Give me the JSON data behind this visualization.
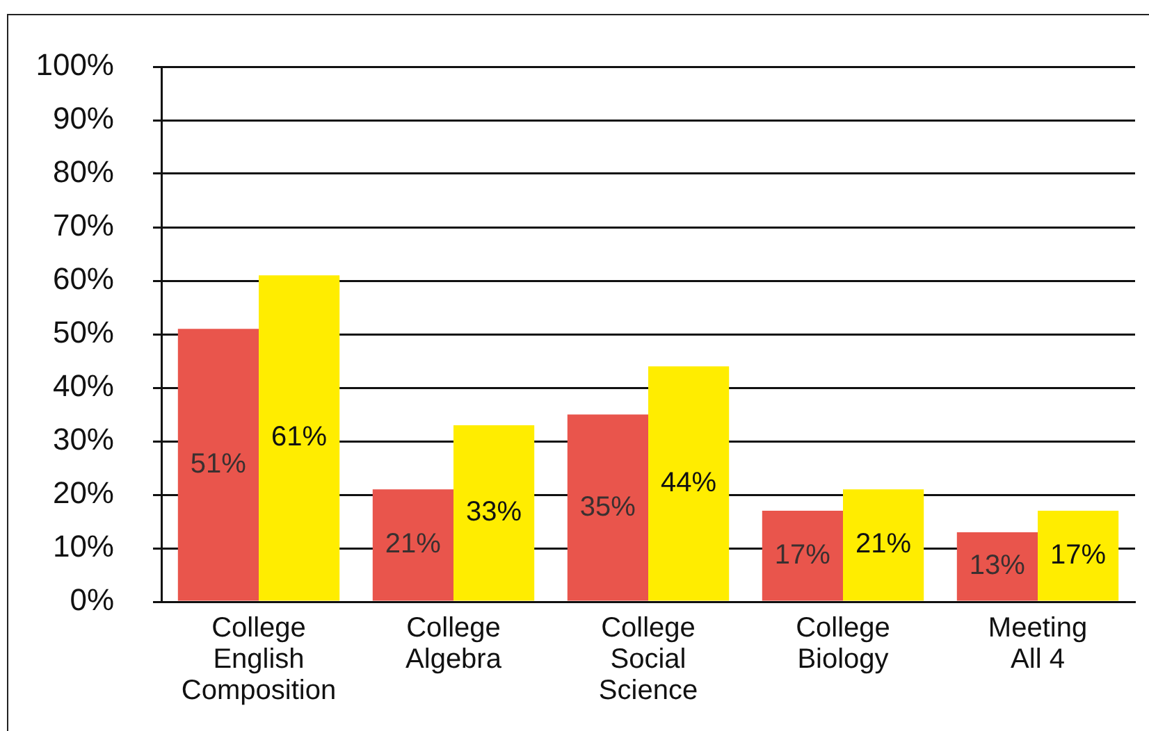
{
  "chart_data": {
    "type": "bar",
    "categories": [
      "College\nEnglish\nComposition",
      "College\nAlgebra",
      "College\nSocial\nScience",
      "College\nBiology",
      "Meeting\nAll 4"
    ],
    "series": [
      {
        "color": "#e9554c",
        "values": [
          51,
          21,
          35,
          17,
          13
        ],
        "value_labels": [
          "51%",
          "21%",
          "35%",
          "17%",
          "13%"
        ]
      },
      {
        "color": "#ffed00",
        "values": [
          61,
          33,
          44,
          21,
          17
        ],
        "value_labels": [
          "61%",
          "33%",
          "44%",
          "21%",
          "17%"
        ]
      }
    ],
    "ylim": [
      0,
      100
    ],
    "yticks": [
      {
        "value": 0,
        "label": "0%"
      },
      {
        "value": 10,
        "label": "10%"
      },
      {
        "value": 20,
        "label": "20%"
      },
      {
        "value": 30,
        "label": "30%"
      },
      {
        "value": 40,
        "label": "40%"
      },
      {
        "value": 50,
        "label": "50%"
      },
      {
        "value": 60,
        "label": "60%"
      },
      {
        "value": 70,
        "label": "70%"
      },
      {
        "value": 80,
        "label": "80%"
      },
      {
        "value": 90,
        "label": "90%"
      },
      {
        "value": 100,
        "label": "100%"
      }
    ],
    "grid": "y"
  }
}
